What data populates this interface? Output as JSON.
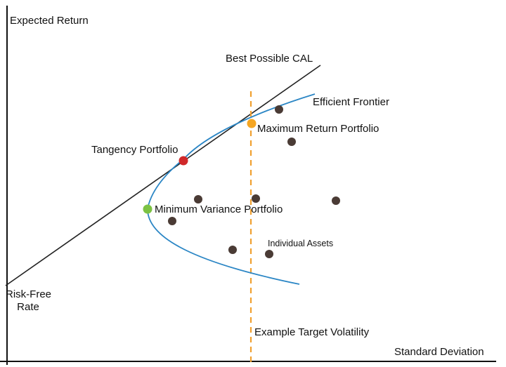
{
  "labels": {
    "y_axis": "Expected Return",
    "x_axis": "Standard Deviation",
    "cal": "Best Possible CAL",
    "efficient_frontier": "Efficient Frontier",
    "max_return": "Maximum Return Portfolio",
    "tangency": "Tangency Portfolio",
    "min_variance": "Minimum Variance Portfolio",
    "individual_assets": "Individual Assets",
    "target_volatility": "Example Target Volatility",
    "risk_free_line1": "Risk-Free",
    "risk_free_line2": "Rate"
  },
  "colors": {
    "axis": "#111111",
    "cal_line": "#222222",
    "frontier": "#2b86c5",
    "target_line": "#f0a030",
    "asset_dot": "#4a3b35",
    "max_return_dot": "#f5a623",
    "tangency_dot": "#d0282a",
    "min_variance_dot": "#7cc243"
  }
}
